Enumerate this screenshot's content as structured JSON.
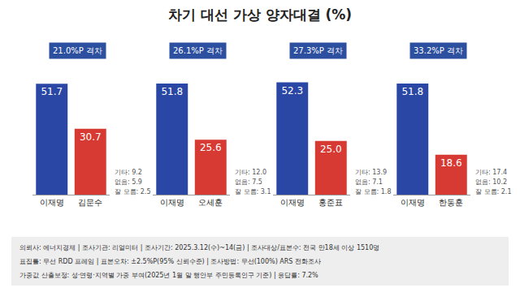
{
  "title": "차기 대선 가상 양자대결 (%)",
  "chart_data": [
    {
      "type": "bar",
      "subtitle": "21.0%P 격차",
      "categories": [
        "이재명",
        "김문수"
      ],
      "values": [
        51.7,
        30.7
      ],
      "colors": [
        "#2a47a6",
        "#d63a33"
      ],
      "data_labels": true,
      "ylim": [
        0,
        65
      ],
      "tick_labels": "x",
      "annotations": [
        "기타: 9.2",
        "없음: 5.9",
        "잘 모름: 2.5"
      ]
    },
    {
      "type": "bar",
      "subtitle": "26.1%P 격차",
      "categories": [
        "이재명",
        "오세훈"
      ],
      "values": [
        51.8,
        25.6
      ],
      "colors": [
        "#2a47a6",
        "#d63a33"
      ],
      "data_labels": true,
      "ylim": [
        0,
        65
      ],
      "tick_labels": "x",
      "annotations": [
        "기타: 12.0",
        "없음: 7.5",
        "잘 모름: 3.1"
      ]
    },
    {
      "type": "bar",
      "subtitle": "27.3%P 격차",
      "categories": [
        "이재명",
        "홍준표"
      ],
      "values": [
        52.3,
        25.0
      ],
      "value_labels": [
        "52.3",
        "25.0"
      ],
      "colors": [
        "#2a47a6",
        "#d63a33"
      ],
      "data_labels": true,
      "ylim": [
        0,
        65
      ],
      "tick_labels": "x",
      "annotations": [
        "기타: 13.9",
        "없음: 7.1",
        "잘 모름: 1.8"
      ]
    },
    {
      "type": "bar",
      "subtitle": "33.2%P 격차",
      "categories": [
        "이재명",
        "한동훈"
      ],
      "values": [
        51.8,
        18.6
      ],
      "colors": [
        "#2a47a6",
        "#d63a33"
      ],
      "data_labels": true,
      "ylim": [
        0,
        65
      ],
      "tick_labels": "x",
      "annotations": [
        "기타: 17.4",
        "없음: 10.2",
        "잘 모름: 2.1"
      ]
    }
  ],
  "footer": [
    "의뢰사: 에너지경제 | 조사기관: 리얼미터 | 조사기간: 2025.3.12(수)~14(금) | 조사대상/표본수: 전국 만18세 이상 1510명",
    "표집틀: 무선 RDD 프레임 | 표본오차: ±2.5%P(95% 신뢰수준) | 조사방법: 무선(100%) ARS 전화조사",
    "가중값 산출보정: 성·연령·지역별 가중 부여(2025년 1월 말 행안부 주민등록인구 기준) | 응답률: 7.2%"
  ]
}
